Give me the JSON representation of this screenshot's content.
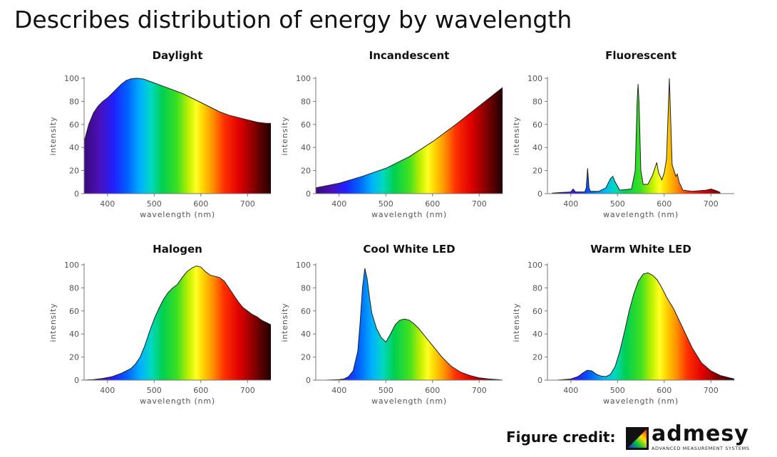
{
  "page": {
    "title": "Describes distribution of energy by wavelength",
    "credit_label": "Figure credit:",
    "logo_name": "admesy",
    "logo_tagline": "ADVANCED MEASUREMENT SYSTEMS",
    "logo_icon": "admesy-logo-icon"
  },
  "chart_data": [
    {
      "type": "area",
      "title": "Daylight",
      "xlabel": "wavelength (nm)",
      "ylabel": "intensity",
      "xlim": [
        350,
        750
      ],
      "ylim": [
        0,
        100
      ],
      "xticks": [
        400,
        500,
        600,
        700
      ],
      "yticks": [
        0,
        20,
        40,
        60,
        80,
        100
      ],
      "x": [
        350,
        360,
        370,
        380,
        390,
        400,
        410,
        420,
        430,
        440,
        450,
        460,
        470,
        480,
        490,
        500,
        520,
        540,
        560,
        580,
        600,
        620,
        640,
        660,
        680,
        700,
        720,
        740,
        750
      ],
      "y": [
        45,
        60,
        70,
        76,
        80,
        83,
        87,
        91,
        95,
        98,
        99.5,
        100,
        99.8,
        99,
        97.5,
        96,
        93,
        90,
        87,
        83,
        79,
        75,
        71,
        68,
        66,
        64,
        62,
        61,
        61
      ]
    },
    {
      "type": "area",
      "title": "Incandescent",
      "xlabel": "wavelength (nm)",
      "ylabel": "intensity",
      "xlim": [
        350,
        750
      ],
      "ylim": [
        0,
        100
      ],
      "xticks": [
        400,
        500,
        600,
        700
      ],
      "yticks": [
        0,
        20,
        40,
        60,
        80,
        100
      ],
      "x": [
        350,
        400,
        450,
        500,
        550,
        600,
        650,
        700,
        750
      ],
      "y": [
        5,
        9,
        15,
        22,
        32,
        45,
        60,
        76,
        92
      ]
    },
    {
      "type": "area",
      "title": "Fluorescent",
      "xlabel": "wavelength (nm)",
      "ylabel": "intensity",
      "xlim": [
        350,
        750
      ],
      "ylim": [
        0,
        100
      ],
      "xticks": [
        400,
        500,
        600,
        700
      ],
      "yticks": [
        0,
        20,
        40,
        60,
        80,
        100
      ],
      "x": [
        360,
        380,
        400,
        403,
        405,
        407,
        410,
        430,
        433,
        436,
        439,
        442,
        460,
        475,
        485,
        490,
        495,
        505,
        530,
        538,
        542,
        544,
        546,
        550,
        555,
        565,
        575,
        580,
        584,
        588,
        595,
        600,
        605,
        609,
        611,
        613,
        617,
        625,
        628,
        632,
        640,
        660,
        690,
        700,
        708,
        715,
        720
      ],
      "y": [
        0.5,
        1,
        1.5,
        3,
        4,
        3,
        1.5,
        1.5,
        5,
        22,
        5,
        2,
        2,
        5,
        13,
        15,
        10,
        3,
        4,
        20,
        80,
        95,
        80,
        20,
        8,
        8,
        16,
        22,
        27,
        18,
        12,
        18,
        30,
        75,
        100,
        75,
        25,
        15,
        17,
        10,
        3,
        2,
        3,
        4,
        3,
        2,
        1
      ]
    },
    {
      "type": "area",
      "title": "Halogen",
      "xlabel": "wavelength (nm)",
      "ylabel": "intensity",
      "xlim": [
        350,
        750
      ],
      "ylim": [
        0,
        100
      ],
      "xticks": [
        400,
        500,
        600,
        700
      ],
      "yticks": [
        0,
        20,
        40,
        60,
        80,
        100
      ],
      "x": [
        350,
        370,
        390,
        410,
        430,
        450,
        460,
        470,
        480,
        490,
        500,
        510,
        520,
        530,
        540,
        550,
        560,
        570,
        580,
        590,
        600,
        610,
        620,
        630,
        640,
        650,
        660,
        670,
        680,
        690,
        700,
        710,
        720,
        730,
        740,
        750
      ],
      "y": [
        0,
        0.5,
        1.5,
        3,
        6,
        10,
        14,
        20,
        30,
        42,
        53,
        62,
        70,
        76,
        80,
        83,
        89,
        94,
        97,
        99,
        98,
        94,
        91,
        90,
        89,
        86,
        80,
        74,
        68,
        63,
        60,
        57,
        55,
        52,
        50,
        48
      ]
    },
    {
      "type": "area",
      "title": "Cool White LED",
      "xlabel": "wavelength (nm)",
      "ylabel": "intensity",
      "xlim": [
        350,
        750
      ],
      "ylim": [
        0,
        100
      ],
      "xticks": [
        400,
        500,
        600,
        700
      ],
      "yticks": [
        0,
        20,
        40,
        60,
        80,
        100
      ],
      "x": [
        370,
        400,
        410,
        420,
        430,
        440,
        445,
        450,
        455,
        460,
        465,
        470,
        480,
        490,
        500,
        510,
        520,
        530,
        540,
        550,
        560,
        570,
        580,
        600,
        620,
        640,
        660,
        680,
        700,
        720,
        740,
        750
      ],
      "y": [
        0,
        0.5,
        1,
        3,
        8,
        25,
        50,
        80,
        97,
        88,
        72,
        58,
        45,
        37,
        33,
        40,
        48,
        52,
        53,
        52,
        49,
        45,
        40,
        30,
        20,
        12,
        7,
        4,
        2,
        1,
        0.5,
        0
      ]
    },
    {
      "type": "area",
      "title": "Warm White LED",
      "xlabel": "wavelength (nm)",
      "ylabel": "intensity",
      "xlim": [
        350,
        750
      ],
      "ylim": [
        0,
        100
      ],
      "xticks": [
        400,
        500,
        600,
        700
      ],
      "yticks": [
        0,
        20,
        40,
        60,
        80,
        100
      ],
      "x": [
        370,
        400,
        415,
        425,
        435,
        445,
        455,
        465,
        475,
        485,
        495,
        505,
        515,
        525,
        535,
        545,
        555,
        565,
        575,
        585,
        595,
        605,
        620,
        640,
        660,
        680,
        700,
        720,
        740,
        750
      ],
      "y": [
        0,
        1,
        3,
        6,
        8.5,
        8,
        5,
        3.5,
        3,
        5,
        12,
        25,
        42,
        60,
        75,
        86,
        92,
        93,
        91,
        87,
        80,
        72,
        62,
        45,
        28,
        15,
        8,
        4,
        2,
        1
      ]
    }
  ]
}
